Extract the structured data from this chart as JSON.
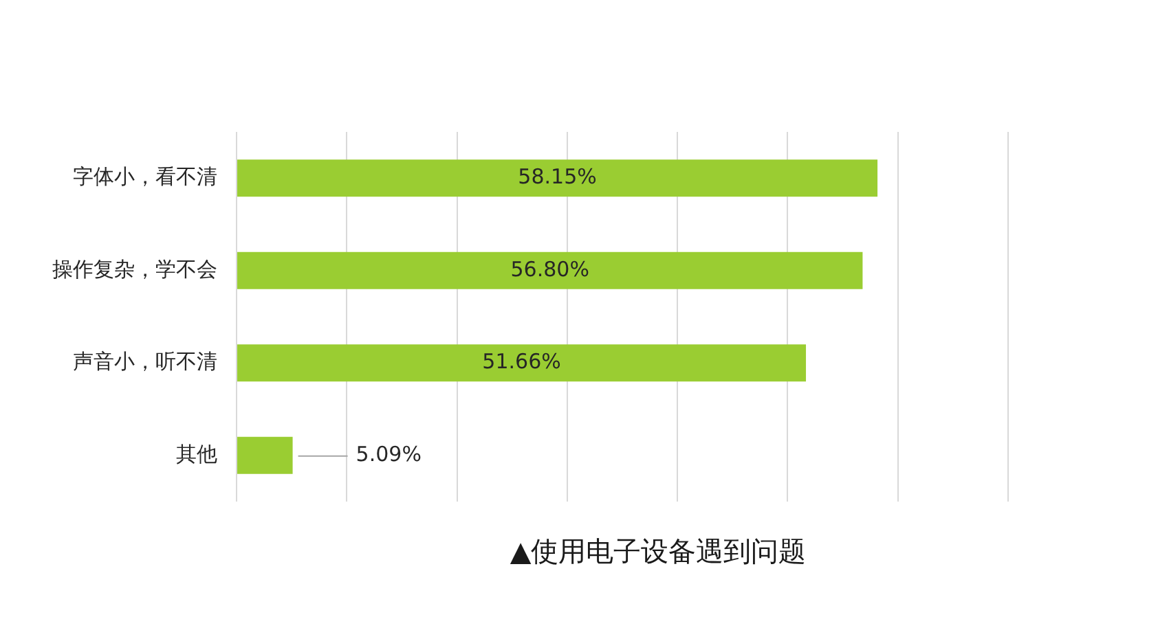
{
  "chart_data": {
    "type": "bar",
    "orientation": "horizontal",
    "title": "▲使用电子设备遇到问题",
    "categories": [
      "字体小，看不清",
      "操作复杂，学不会",
      "声音小，听不清",
      "其他"
    ],
    "values": [
      58.15,
      56.8,
      51.66,
      5.09
    ],
    "value_labels": [
      "58.15%",
      "56.80%",
      "51.66%",
      "5.09%"
    ],
    "color": "#9acd32",
    "xlim": [
      0,
      70
    ],
    "xticks": [
      {
        "value": 0,
        "label": null
      },
      {
        "value": 10,
        "label": null
      },
      {
        "value": 20,
        "label": null
      },
      {
        "value": 30,
        "label": null
      },
      {
        "value": 40,
        "label": null
      },
      {
        "value": 50,
        "label": null
      },
      {
        "value": 60,
        "label": null
      },
      {
        "value": 70,
        "label": null
      }
    ],
    "grid": "x",
    "tick_labels": "y"
  }
}
